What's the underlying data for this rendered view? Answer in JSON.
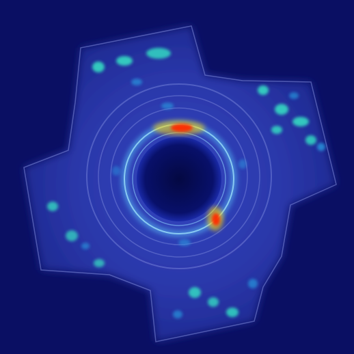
{
  "image": {
    "colors": {
      "background": "#0a0f63",
      "part_body": "#2f3fb8",
      "part_edge": "#8a95e6",
      "ring_glow": "#5fd1ff",
      "hotspot_hot": "#ff2a00",
      "hotspot_warm": "#ffd400",
      "hotspot_cool": "#36e3c4",
      "bore": "#050a45"
    }
  }
}
